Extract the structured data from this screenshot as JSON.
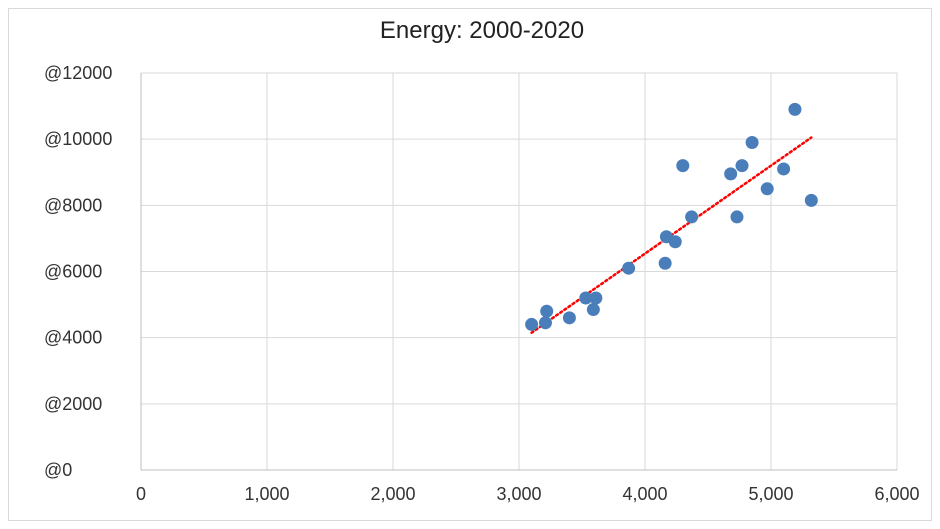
{
  "chart_data": {
    "type": "scatter",
    "title": "Energy: 2000-2020",
    "xlabel": "",
    "ylabel": "",
    "xlim": [
      0,
      6000
    ],
    "ylim": [
      0,
      12000
    ],
    "x_ticks": [
      "0",
      "1,000",
      "2,000",
      "3,000",
      "4,000",
      "5,000",
      "6,000"
    ],
    "y_ticks": [
      "@0",
      "@2000",
      "@4000",
      "@6000",
      "@8000",
      "@10000",
      "@12000"
    ],
    "grid": true,
    "legend": "none",
    "colors": {
      "points": "#4a7ebb",
      "trendline": "#ff0000",
      "grid": "#d9d9d9"
    },
    "series": [
      {
        "points": [
          [
            3100,
            4400
          ],
          [
            3210,
            4450
          ],
          [
            3220,
            4800
          ],
          [
            3400,
            4600
          ],
          [
            3530,
            5200
          ],
          [
            3590,
            4850
          ],
          [
            3610,
            5200
          ],
          [
            3870,
            6100
          ],
          [
            4160,
            6250
          ],
          [
            4170,
            7050
          ],
          [
            4240,
            6900
          ],
          [
            4300,
            9200
          ],
          [
            4370,
            7650
          ],
          [
            4680,
            8950
          ],
          [
            4730,
            7650
          ],
          [
            4770,
            9200
          ],
          [
            4850,
            9900
          ],
          [
            4970,
            8500
          ],
          [
            5100,
            9100
          ],
          [
            5190,
            10900
          ],
          [
            5320,
            8150
          ]
        ]
      }
    ],
    "trendline": {
      "type": "linear",
      "style": "dotted",
      "x": [
        3100,
        5320
      ],
      "y": [
        4150,
        10050
      ]
    }
  }
}
